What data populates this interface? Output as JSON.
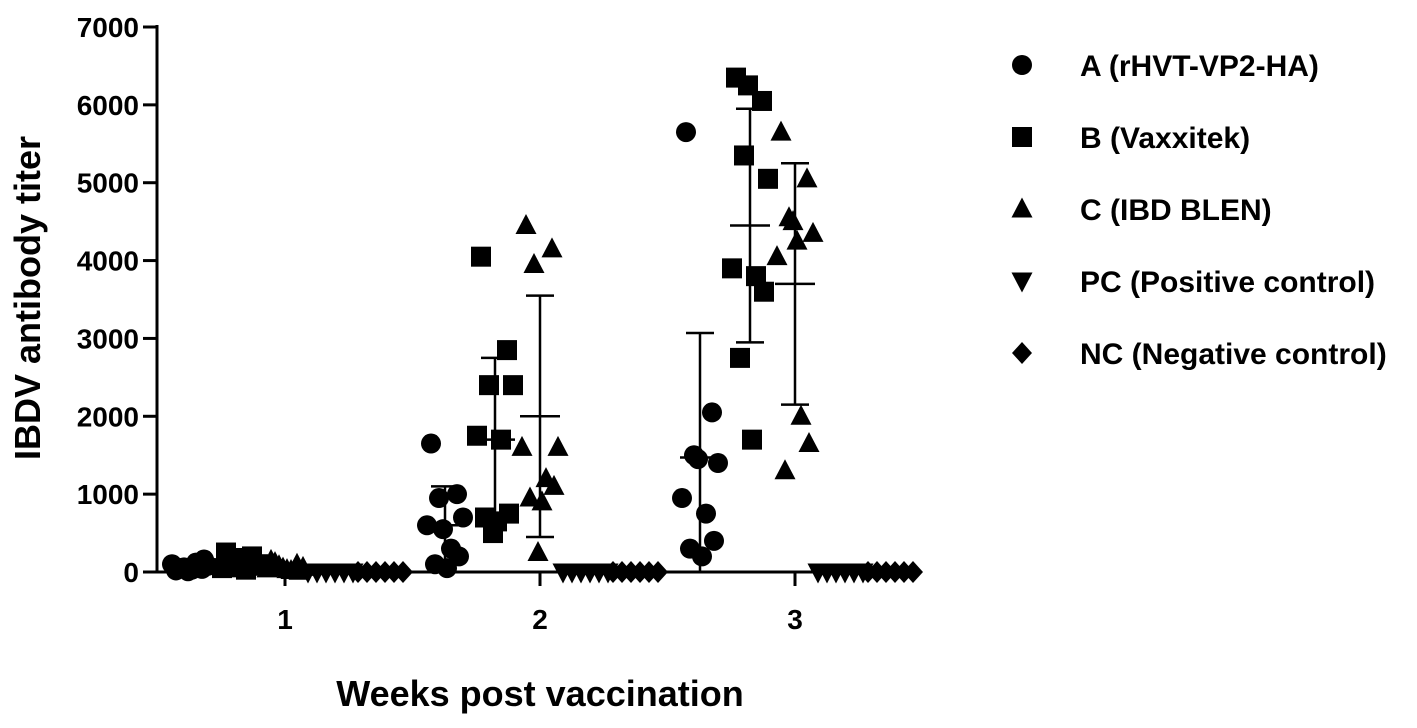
{
  "chart_data": {
    "type": "scatter",
    "title": "",
    "xlabel": "Weeks post vaccination",
    "ylabel": "IBDV antibody titer",
    "ylim": [
      0,
      7000
    ],
    "yticks": [
      "0",
      "1000",
      "2000",
      "3000",
      "4000",
      "5000",
      "6000",
      "7000"
    ],
    "categories": [
      "1",
      "2",
      "3"
    ],
    "legend_position": "right",
    "grid": false,
    "series": [
      {
        "name": "A (rHVT-VP2-HA)",
        "marker": "circle",
        "points": [
          {
            "week": "1",
            "values": [
              20,
              40,
              60,
              80,
              100,
              120,
              160,
              50,
              30,
              10
            ]
          },
          {
            "week": "2",
            "values": [
              1650,
              1000,
              950,
              700,
              600,
              300,
              200,
              100,
              50,
              550
            ]
          },
          {
            "week": "3",
            "values": [
              5650,
              2050,
              1500,
              1400,
              950,
              750,
              400,
              300,
              200,
              1450
            ]
          }
        ],
        "mean_sd": [
          {
            "week": "1",
            "mean": 70,
            "sd": 40
          },
          {
            "week": "2",
            "mean": 600,
            "sd": 500
          },
          {
            "week": "3",
            "mean": 1470,
            "sd": 1600
          }
        ]
      },
      {
        "name": "B (Vaxxitek)",
        "marker": "square",
        "points": [
          {
            "week": "1",
            "values": [
              250,
              200,
              150,
              100,
              50,
              30,
              80,
              120,
              180,
              60
            ]
          },
          {
            "week": "2",
            "values": [
              4050,
              2850,
              2400,
              2400,
              1750,
              1700,
              750,
              700,
              650,
              500
            ]
          },
          {
            "week": "3",
            "values": [
              6350,
              6050,
              5350,
              5050,
              3900,
              3800,
              3600,
              2750,
              1700,
              6250
            ]
          }
        ],
        "mean_sd": [
          {
            "week": "1",
            "mean": 120,
            "sd": 70
          },
          {
            "week": "2",
            "mean": 1700,
            "sd": 1050
          },
          {
            "week": "3",
            "mean": 4450,
            "sd": 1500
          }
        ]
      },
      {
        "name": "C (IBD BLEN)",
        "marker": "triangle-up",
        "points": [
          {
            "week": "1",
            "values": [
              150,
              100,
              80,
              60,
              40,
              20,
              10,
              120,
              30,
              50
            ]
          },
          {
            "week": "2",
            "values": [
              4450,
              4150,
              3950,
              1600,
              1600,
              1200,
              1100,
              950,
              900,
              250
            ]
          },
          {
            "week": "3",
            "values": [
              5650,
              5050,
              4550,
              4350,
              4050,
              2000,
              1650,
              1300,
              4250,
              4500
            ]
          }
        ],
        "mean_sd": [
          {
            "week": "1",
            "mean": 60,
            "sd": 40
          },
          {
            "week": "2",
            "mean": 2000,
            "sd": 1550
          },
          {
            "week": "3",
            "mean": 3700,
            "sd": 1550
          }
        ]
      },
      {
        "name": "PC (Positive control)",
        "marker": "triangle-down",
        "points": [
          {
            "week": "1",
            "values": [
              0,
              0,
              0,
              0,
              0,
              0
            ]
          },
          {
            "week": "2",
            "values": [
              0,
              0,
              0,
              0,
              0,
              0
            ]
          },
          {
            "week": "3",
            "values": [
              0,
              0,
              0,
              0,
              0,
              0
            ]
          }
        ],
        "mean_sd": []
      },
      {
        "name": "NC (Negative control)",
        "marker": "diamond",
        "points": [
          {
            "week": "1",
            "values": [
              0,
              0,
              0,
              0,
              0,
              0
            ]
          },
          {
            "week": "2",
            "values": [
              0,
              0,
              0,
              0,
              0,
              0
            ]
          },
          {
            "week": "3",
            "values": [
              0,
              0,
              0,
              0,
              0,
              0
            ]
          }
        ],
        "mean_sd": []
      }
    ]
  }
}
